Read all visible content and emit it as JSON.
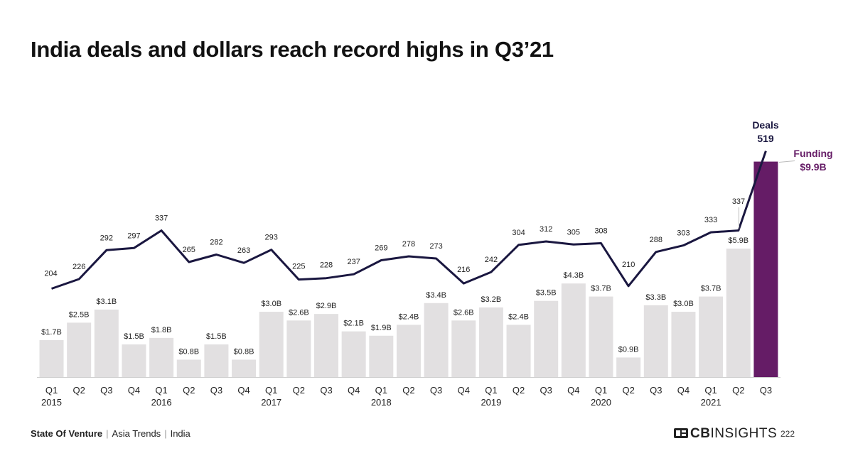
{
  "title": "India deals and dollars reach record highs in Q3’21",
  "footer": {
    "report": "State Of Venture",
    "section": "Asia Trends",
    "region": "India"
  },
  "brand": {
    "logo_bold": "CB",
    "logo_rest": "INSIGHTS"
  },
  "page_number": "222",
  "colors": {
    "bar": "#e2e0e1",
    "highlight_bar": "#651c66",
    "line": "#1a1740",
    "label": "#222222"
  },
  "chart_data": {
    "type": "bar",
    "categories": [
      "Q1",
      "Q2",
      "Q3",
      "Q4",
      "Q1",
      "Q2",
      "Q3",
      "Q4",
      "Q1",
      "Q2",
      "Q3",
      "Q4",
      "Q1",
      "Q2",
      "Q3",
      "Q4",
      "Q1",
      "Q2",
      "Q3",
      "Q4",
      "Q1",
      "Q2",
      "Q3",
      "Q4",
      "Q1",
      "Q2",
      "Q3"
    ],
    "years": [
      "2015",
      "",
      "",
      "",
      "2016",
      "",
      "",
      "",
      "2017",
      "",
      "",
      "",
      "2018",
      "",
      "",
      "",
      "2019",
      "",
      "",
      "",
      "2020",
      "",
      "",
      "",
      "2021",
      "",
      ""
    ],
    "series": [
      {
        "name": "Funding",
        "type": "bar",
        "values": [
          1.7,
          2.5,
          3.1,
          1.5,
          1.8,
          0.8,
          1.5,
          0.8,
          3.0,
          2.6,
          2.9,
          2.1,
          1.9,
          2.4,
          3.4,
          2.6,
          3.2,
          2.4,
          3.5,
          4.3,
          3.7,
          0.9,
          3.3,
          3.0,
          3.7,
          5.9,
          9.9
        ],
        "labels": [
          "$1.7B",
          "$2.5B",
          "$3.1B",
          "$1.5B",
          "$1.8B",
          "$0.8B",
          "$1.5B",
          "$0.8B",
          "$3.0B",
          "$2.6B",
          "$2.9B",
          "$2.1B",
          "$1.9B",
          "$2.4B",
          "$3.4B",
          "$2.6B",
          "$3.2B",
          "$2.4B",
          "$3.5B",
          "$4.3B",
          "$3.7B",
          "$0.9B",
          "$3.3B",
          "$3.0B",
          "$3.7B",
          "$5.9B",
          "$9.9B"
        ]
      },
      {
        "name": "Deals",
        "type": "line",
        "values": [
          204,
          226,
          292,
          297,
          337,
          265,
          282,
          263,
          293,
          225,
          228,
          237,
          269,
          278,
          273,
          216,
          242,
          304,
          312,
          305,
          308,
          210,
          288,
          303,
          333,
          337,
          519
        ]
      }
    ],
    "callouts": {
      "deals": {
        "name": "Deals",
        "value": "519"
      },
      "funding": {
        "name": "Funding",
        "value": "$9.9B"
      }
    }
  }
}
